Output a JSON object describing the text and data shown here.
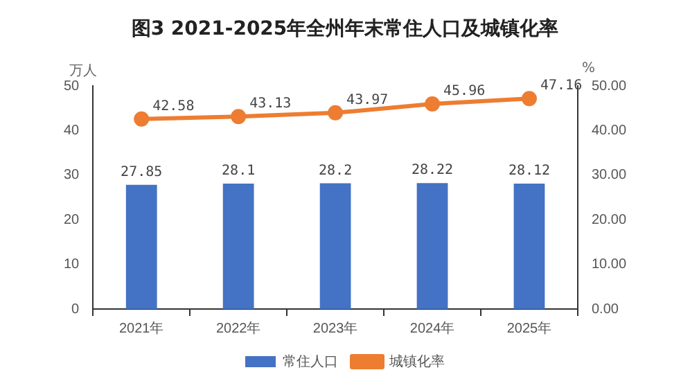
{
  "chart_data": {
    "type": "bar",
    "title": "图3  2021-2025年全州年末常住人口及城镇化率",
    "ylabel": "万人",
    "y2label": "%",
    "categories": [
      "2021年",
      "2022年",
      "2023年",
      "2024年",
      "2025年"
    ],
    "series": [
      {
        "name": "常住人口",
        "color": "#4472c4",
        "values": [
          27.85,
          28.1,
          28.2,
          28.22,
          28.12
        ]
      },
      {
        "name": "城镇化率",
        "type": "line",
        "axis": "y2",
        "color": "#ed7d31",
        "values": [
          42.58,
          43.13,
          43.97,
          45.96,
          47.16
        ]
      }
    ],
    "ylim": [
      0,
      50
    ],
    "yticks": [
      0,
      10,
      20,
      30,
      40,
      50
    ],
    "y2lim": [
      0,
      50
    ],
    "y2ticks": [
      {
        "value": 0,
        "label": "0.00"
      },
      {
        "value": 10,
        "label": "10.00"
      },
      {
        "value": 20,
        "label": "20.00"
      },
      {
        "value": 30,
        "label": "30.00"
      },
      {
        "value": 40,
        "label": "40.00"
      },
      {
        "value": 50,
        "label": "50.00"
      }
    ],
    "data_labels": true,
    "legend": "bottom",
    "marker": "circle",
    "grid": false
  }
}
